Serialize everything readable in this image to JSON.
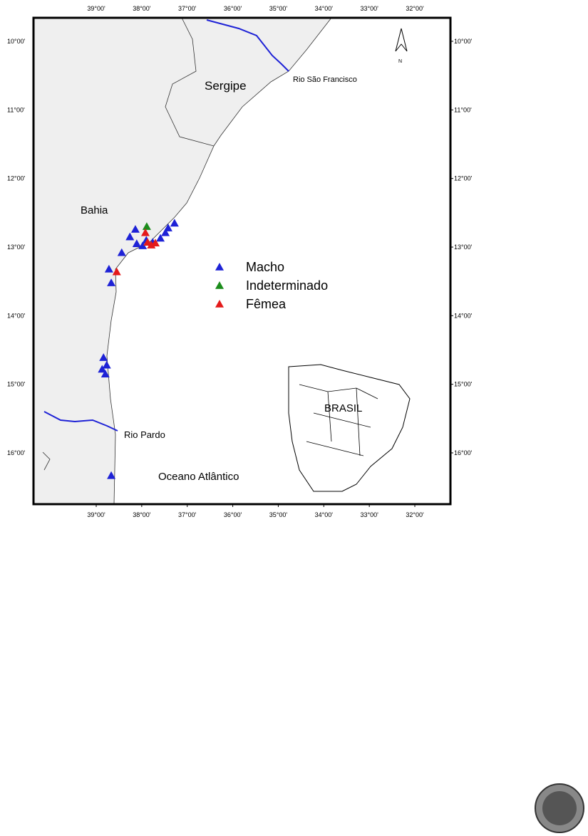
{
  "map": {
    "lon_ticks": [
      {
        "value": 39,
        "label": "39°00'"
      },
      {
        "value": 38,
        "label": "38°00'"
      },
      {
        "value": 37,
        "label": "37°00'"
      },
      {
        "value": 36,
        "label": "36°00'"
      },
      {
        "value": 35,
        "label": "35°00'"
      },
      {
        "value": 34,
        "label": "34°00'"
      },
      {
        "value": 33,
        "label": "33°00'"
      },
      {
        "value": 32,
        "label": "32°00'"
      }
    ],
    "lat_ticks": [
      {
        "value": 10,
        "label": "10°00'"
      },
      {
        "value": 11,
        "label": "11°00'"
      },
      {
        "value": 12,
        "label": "12°00'"
      },
      {
        "value": 13,
        "label": "13°00'"
      },
      {
        "value": 14,
        "label": "14°00'"
      },
      {
        "value": 15,
        "label": "15°00'"
      },
      {
        "value": 16,
        "label": "16°00'"
      }
    ],
    "places": [
      "Sergipe",
      "Rio São Francisco",
      "Bahia",
      "Rio Pardo",
      "Oceano Atlântico",
      "BRASIL",
      "N"
    ],
    "groups": [
      {
        "name": "Macho",
        "color": "#1e22d6"
      },
      {
        "name": "Indeterminado",
        "color": "#1b8c1b"
      },
      {
        "name": "Fêmea",
        "color": "#e41a1a"
      }
    ],
    "points": [
      {
        "group": 0,
        "lon": 37.28,
        "lat": 12.65
      },
      {
        "group": 0,
        "lon": 37.42,
        "lat": 12.72
      },
      {
        "group": 0,
        "lon": 37.48,
        "lat": 12.79
      },
      {
        "group": 0,
        "lon": 37.59,
        "lat": 12.87
      },
      {
        "group": 0,
        "lon": 37.76,
        "lat": 12.93
      },
      {
        "group": 0,
        "lon": 37.9,
        "lat": 12.9
      },
      {
        "group": 0,
        "lon": 38.11,
        "lat": 12.95
      },
      {
        "group": 0,
        "lon": 38.26,
        "lat": 12.85
      },
      {
        "group": 0,
        "lon": 38.14,
        "lat": 12.74
      },
      {
        "group": 0,
        "lon": 37.98,
        "lat": 12.98
      },
      {
        "group": 0,
        "lon": 38.44,
        "lat": 13.08
      },
      {
        "group": 0,
        "lon": 38.72,
        "lat": 13.32
      },
      {
        "group": 0,
        "lon": 38.67,
        "lat": 13.52
      },
      {
        "group": 0,
        "lon": 38.84,
        "lat": 14.61
      },
      {
        "group": 0,
        "lon": 38.87,
        "lat": 14.78
      },
      {
        "group": 0,
        "lon": 38.77,
        "lat": 14.72
      },
      {
        "group": 0,
        "lon": 38.8,
        "lat": 14.85
      },
      {
        "group": 0,
        "lon": 38.67,
        "lat": 16.33
      },
      {
        "group": 1,
        "lon": 37.89,
        "lat": 12.7
      },
      {
        "group": 2,
        "lon": 37.92,
        "lat": 12.79
      },
      {
        "group": 2,
        "lon": 37.87,
        "lat": 12.93
      },
      {
        "group": 2,
        "lon": 37.79,
        "lat": 12.97
      },
      {
        "group": 2,
        "lon": 37.7,
        "lat": 12.94
      },
      {
        "group": 2,
        "lon": 38.55,
        "lat": 13.36
      }
    ]
  }
}
